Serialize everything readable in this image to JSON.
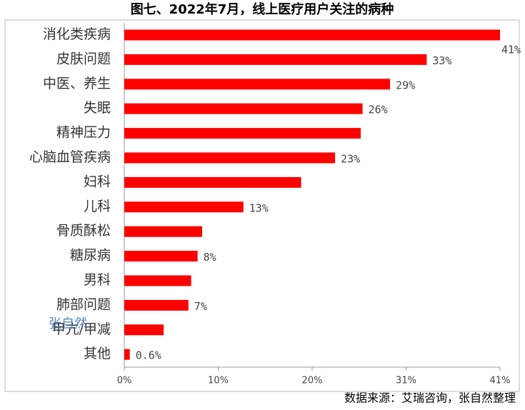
{
  "chart_data": {
    "type": "bar",
    "orientation": "horizontal",
    "title": "图七、2022年7月，线上医疗用户关注的病种",
    "source": "数据来源：艾瑞咨询，张自然整理",
    "watermark": "张自然",
    "categories": [
      "消化类疾病",
      "皮肤问题",
      "中医、养生",
      "失眠",
      "精神压力",
      "心脑血管疾病",
      "妇科",
      "儿科",
      "骨质酥松",
      "糖尿病",
      "男科",
      "肺部问题",
      "甲亢/甲减",
      "其他"
    ],
    "values": [
      41,
      33,
      29,
      26,
      25.8,
      23,
      19.3,
      13,
      8.5,
      8,
      7.3,
      7,
      4.3,
      0.6
    ],
    "value_labels": [
      "41%",
      "33%",
      "29%",
      "26%",
      null,
      "23%",
      null,
      "13%",
      null,
      "8%",
      null,
      "7%",
      null,
      "0.6%"
    ],
    "color": "#ff0000",
    "xlim": [
      0,
      41
    ],
    "xticks": [
      {
        "value": 0,
        "label": "0%"
      },
      {
        "value": 10.25,
        "label": "10%"
      },
      {
        "value": 20.5,
        "label": "20%"
      },
      {
        "value": 30.75,
        "label": "31%"
      },
      {
        "value": 41,
        "label": "41%"
      }
    ]
  }
}
